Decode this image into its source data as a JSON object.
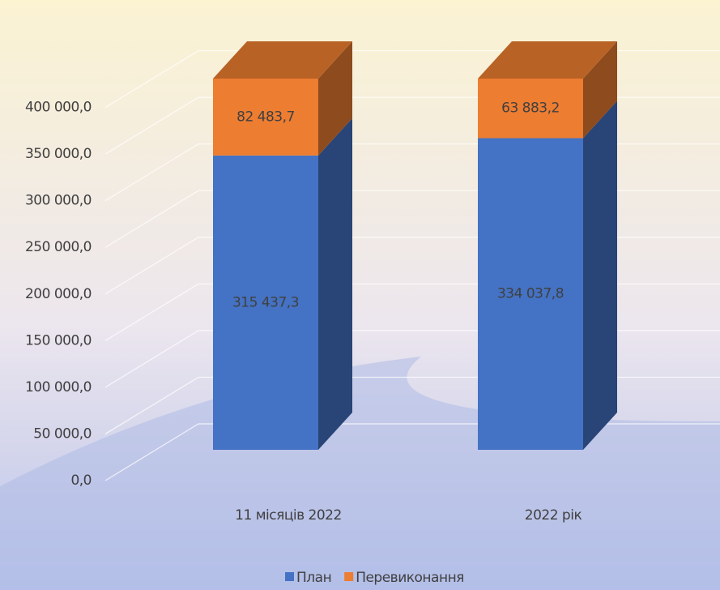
{
  "chart_data": {
    "type": "bar3d_stacked",
    "categories": [
      "11 місяців 2022",
      "2022 рік"
    ],
    "series": [
      {
        "name": "План",
        "color": "#4472c4",
        "values": [
          315437.3,
          334037.8
        ],
        "value_labels": [
          "315 437,3",
          "334 037,8"
        ]
      },
      {
        "name": "Перевиконання",
        "color": "#ed7d31",
        "values": [
          82483.7,
          63883.2
        ],
        "value_labels": [
          "82 483,7",
          "63 883,2"
        ]
      }
    ],
    "ylim": [
      0,
      450000
    ],
    "yticks": [
      {
        "value": 0,
        "label": "0,0"
      },
      {
        "value": 50000,
        "label": "50 000,0"
      },
      {
        "value": 100000,
        "label": "100 000,0"
      },
      {
        "value": 150000,
        "label": "150 000,0"
      },
      {
        "value": 200000,
        "label": "200 000,0"
      },
      {
        "value": 250000,
        "label": "250 000,0"
      },
      {
        "value": 300000,
        "label": "300 000,0"
      },
      {
        "value": 350000,
        "label": "350 000,0"
      },
      {
        "value": 400000,
        "label": "400 000,0"
      }
    ],
    "grid": true,
    "legend": "bottom"
  }
}
